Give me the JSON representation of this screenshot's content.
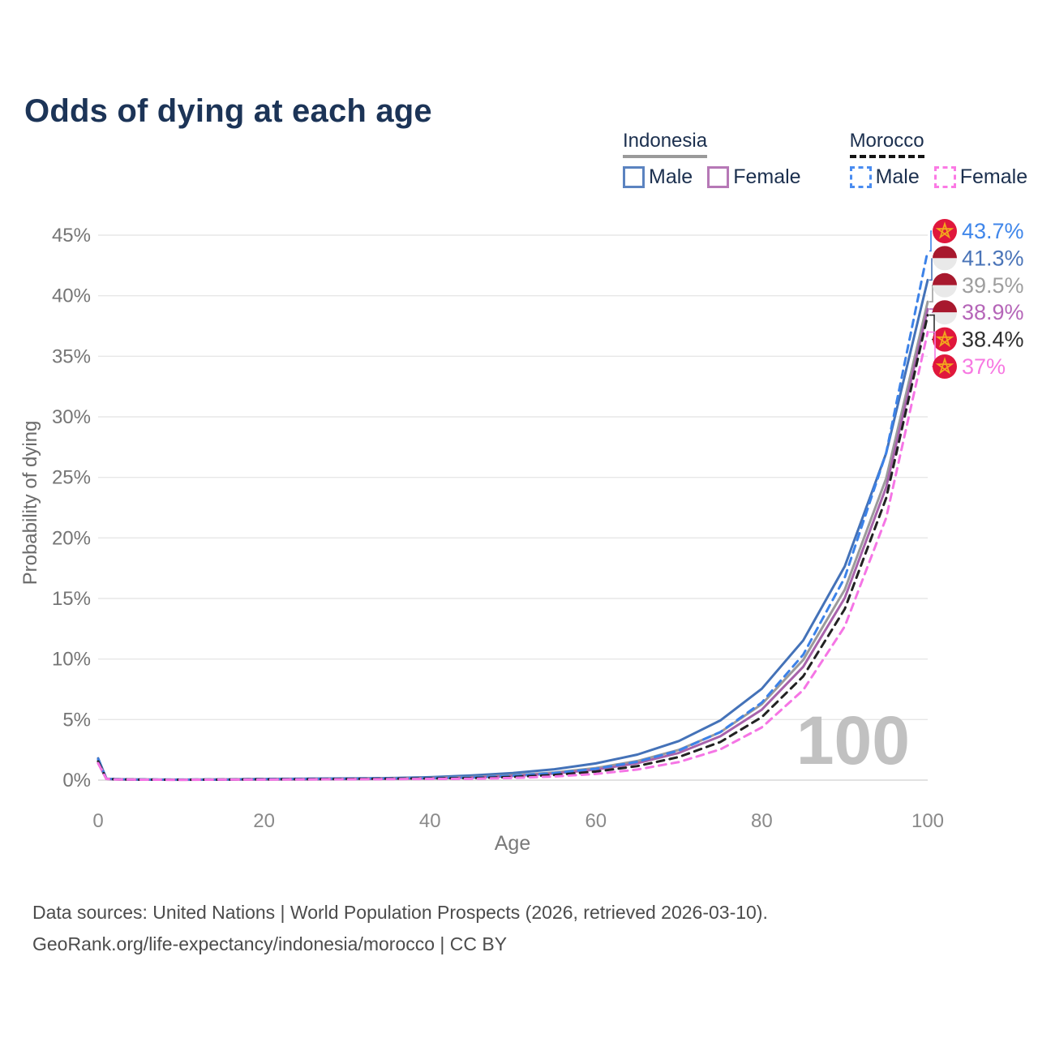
{
  "title": "Odds of dying at each age",
  "legend": {
    "groups": [
      {
        "name": "Indonesia",
        "line_style": "solid",
        "underline_color": "#9a9a9a",
        "items": [
          {
            "label": "Male",
            "color": "#5b83c0",
            "dash": "solid"
          },
          {
            "label": "Female",
            "color": "#b678b6",
            "dash": "solid"
          }
        ]
      },
      {
        "name": "Morocco",
        "line_style": "dashed",
        "underline_color": "#141414",
        "items": [
          {
            "label": "Male",
            "color": "#4a8cf0",
            "dash": "dashed"
          },
          {
            "label": "Female",
            "color": "#fb7ae4",
            "dash": "dashed"
          }
        ]
      }
    ]
  },
  "chart_data": {
    "type": "line",
    "title": "Odds of dying at each age",
    "xlabel": "Age",
    "ylabel": "Probability of dying",
    "xlim": [
      0,
      100
    ],
    "ylim": [
      0,
      45
    ],
    "unit": "%",
    "grid": "horizontal",
    "legend_position": "top-right",
    "xticks": [
      "0",
      "20",
      "40",
      "60",
      "80",
      "100"
    ],
    "xtick_values": [
      0,
      20,
      40,
      60,
      80,
      100
    ],
    "ytick_labels": [
      "0%",
      "5%",
      "10%",
      "15%",
      "20%",
      "25%",
      "30%",
      "35%",
      "40%",
      "45%"
    ],
    "ytick_values": [
      0,
      5,
      10,
      15,
      20,
      25,
      30,
      35,
      40,
      45
    ],
    "watermark": "100",
    "ages": [
      0,
      1,
      2,
      5,
      10,
      15,
      20,
      25,
      30,
      35,
      40,
      45,
      50,
      55,
      60,
      65,
      70,
      75,
      80,
      85,
      90,
      95,
      100
    ],
    "series": [
      {
        "name": "Indonesia Male",
        "country": "Indonesia",
        "sex": "Male",
        "color": "#4472b8",
        "dash": "solid",
        "values": [
          1.8,
          0.12,
          0.08,
          0.05,
          0.04,
          0.06,
          0.1,
          0.12,
          0.14,
          0.17,
          0.24,
          0.39,
          0.59,
          0.9,
          1.38,
          2.11,
          3.23,
          4.93,
          7.55,
          11.54,
          17.65,
          27.0,
          41.3
        ]
      },
      {
        "name": "Indonesia Both sexes",
        "country": "Indonesia",
        "sex": "Both",
        "color": "#9b9b9b",
        "dash": "solid",
        "values": [
          1.55,
          0.1,
          0.07,
          0.04,
          0.035,
          0.05,
          0.08,
          0.09,
          0.11,
          0.14,
          0.19,
          0.25,
          0.4,
          0.63,
          1.0,
          1.58,
          2.5,
          3.96,
          6.27,
          9.93,
          15.73,
          24.92,
          39.5
        ]
      },
      {
        "name": "Indonesia Female",
        "country": "Indonesia",
        "sex": "Female",
        "color": "#a863ab",
        "dash": "solid",
        "values": [
          1.4,
          0.1,
          0.06,
          0.04,
          0.03,
          0.04,
          0.05,
          0.06,
          0.08,
          0.1,
          0.14,
          0.21,
          0.34,
          0.54,
          0.87,
          1.4,
          2.25,
          3.62,
          5.82,
          9.36,
          15.04,
          24.19,
          38.9
        ]
      },
      {
        "name": "Morocco Male",
        "country": "Morocco",
        "sex": "Male",
        "color": "#3c82e8",
        "dash": "dashed",
        "values": [
          1.7,
          0.12,
          0.08,
          0.05,
          0.04,
          0.05,
          0.09,
          0.1,
          0.12,
          0.15,
          0.18,
          0.22,
          0.36,
          0.58,
          0.94,
          1.52,
          2.45,
          3.97,
          6.41,
          10.36,
          16.73,
          27.03,
          43.7
        ]
      },
      {
        "name": "Morocco Both sexes",
        "country": "Morocco",
        "sex": "Both",
        "color": "#222222",
        "dash": "dashed",
        "values": [
          1.55,
          0.11,
          0.07,
          0.04,
          0.035,
          0.045,
          0.07,
          0.08,
          0.1,
          0.12,
          0.14,
          0.16,
          0.26,
          0.43,
          0.7,
          1.16,
          1.91,
          3.15,
          5.2,
          8.57,
          14.13,
          23.29,
          38.4
        ]
      },
      {
        "name": "Morocco Female",
        "country": "Morocco",
        "sex": "Female",
        "color": "#f575e5",
        "dash": "dashed",
        "values": [
          1.4,
          0.1,
          0.06,
          0.035,
          0.03,
          0.04,
          0.05,
          0.06,
          0.07,
          0.08,
          0.1,
          0.11,
          0.18,
          0.3,
          0.51,
          0.88,
          1.49,
          2.54,
          4.35,
          7.44,
          12.69,
          21.66,
          37.0
        ]
      }
    ],
    "end_labels": [
      {
        "series": "Morocco Male",
        "label": "43.7%",
        "value": 43.7,
        "color": "#3f86ea",
        "flag": "morocco"
      },
      {
        "series": "Indonesia Male",
        "label": "41.3%",
        "value": 41.3,
        "color": "#4a74b8",
        "flag": "indonesia"
      },
      {
        "series": "Indonesia Both sexes",
        "label": "39.5%",
        "value": 39.5,
        "color": "#9e9e9e",
        "flag": "indonesia"
      },
      {
        "series": "Indonesia Female",
        "label": "38.9%",
        "value": 38.9,
        "color": "#b565b8",
        "flag": "indonesia"
      },
      {
        "series": "Morocco Both sexes",
        "label": "38.4%",
        "value": 38.4,
        "color": "#2f2f2f",
        "flag": "morocco"
      },
      {
        "series": "Morocco Female",
        "label": "37%",
        "value": 37.0,
        "color": "#f779e2",
        "flag": "morocco"
      }
    ],
    "flag_colors": {
      "morocco_red": "#e0173c",
      "morocco_star": "#f2a81d",
      "indonesia_red": "#a8192e",
      "indonesia_white": "#e9e9e9"
    }
  },
  "footer": {
    "line1": "Data sources: United Nations | World Population Prospects (2026, retrieved 2026-03-10).",
    "line2": "GeoRank.org/life-expectancy/indonesia/morocco | CC BY"
  }
}
